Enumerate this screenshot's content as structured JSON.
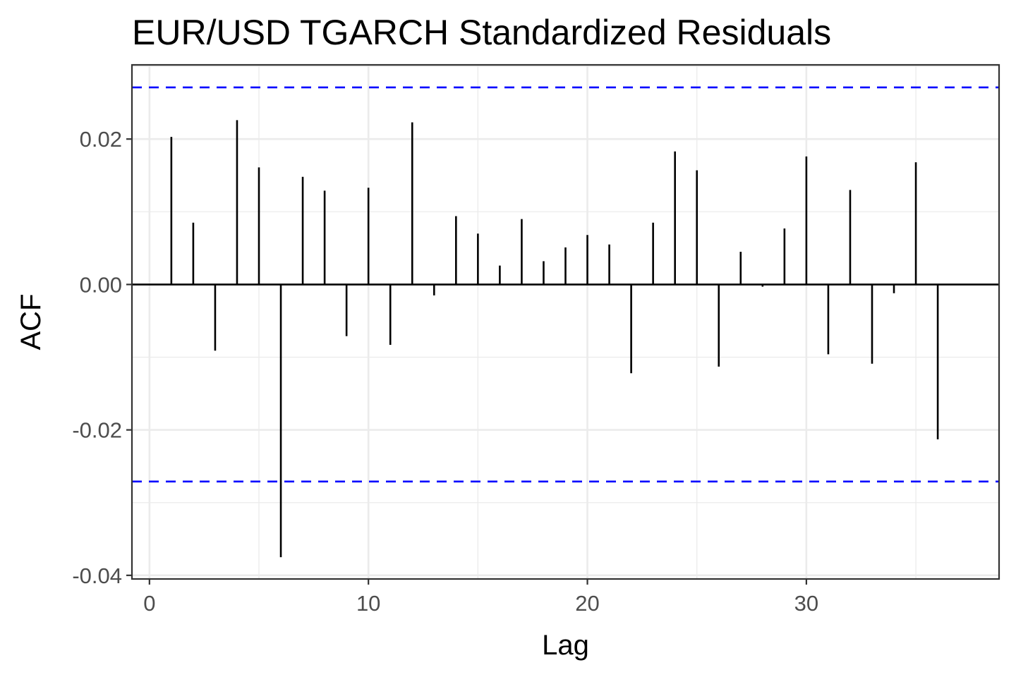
{
  "chart_data": {
    "type": "bar",
    "title": "EUR/USD TGARCH Standardized Residuals",
    "xlabel": "Lag",
    "ylabel": "ACF",
    "xlim": [
      -0.8,
      38.8
    ],
    "ylim": [
      -0.0405,
      0.0302
    ],
    "x_ticks": [
      0,
      10,
      20,
      30
    ],
    "y_ticks": [
      -0.04,
      -0.02,
      0.0,
      0.02
    ],
    "y_tick_labels": [
      "-0.04",
      "-0.02",
      "0.00",
      "0.02"
    ],
    "grid": true,
    "confidence_bound": 0.0271,
    "conf_color": "#0000ff",
    "bar_color": "#000000",
    "lags": [
      1,
      2,
      3,
      4,
      5,
      6,
      7,
      8,
      9,
      10,
      11,
      12,
      13,
      14,
      15,
      16,
      17,
      18,
      19,
      20,
      21,
      22,
      23,
      24,
      25,
      26,
      27,
      28,
      29,
      30,
      31,
      32,
      33,
      34,
      35,
      36
    ],
    "values": [
      0.0203,
      0.0085,
      -0.0091,
      0.0226,
      0.0161,
      -0.0375,
      0.0148,
      0.0129,
      -0.0071,
      0.0133,
      -0.0083,
      0.0223,
      -0.0015,
      0.0094,
      0.007,
      0.0026,
      0.009,
      0.0032,
      0.0051,
      0.0068,
      0.0055,
      -0.0122,
      0.0085,
      0.0183,
      0.0157,
      -0.0113,
      0.0045,
      -0.0003,
      0.0077,
      0.0176,
      -0.0096,
      0.013,
      -0.0109,
      -0.0012,
      0.0168,
      -0.0213
    ]
  }
}
